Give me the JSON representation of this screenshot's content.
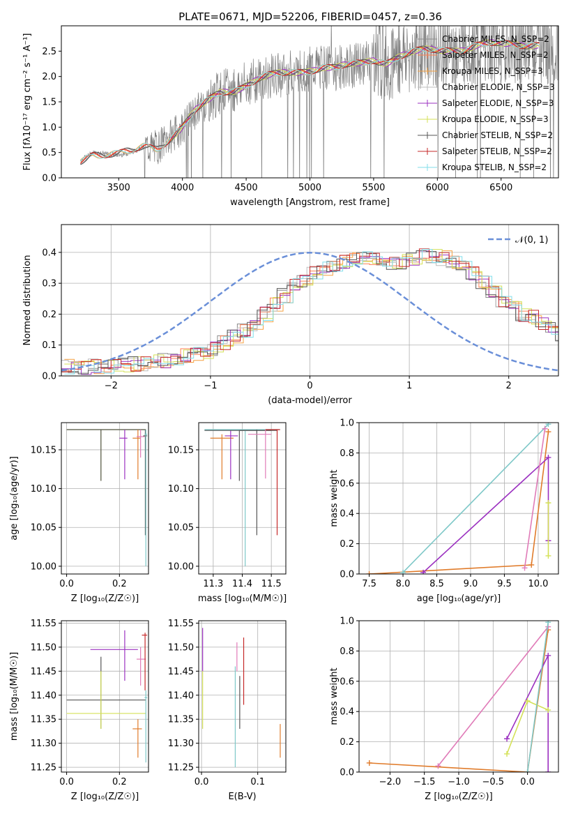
{
  "figure_title": "PLATE=0671, MJD=52206, FIBERID=0457, z=0.36",
  "colors": {
    "chabrier_miles": "#8c8c8c",
    "salpeter_miles": "#ff7f50",
    "kroupa_miles": "#f5a142",
    "chabrier_elodie": "#bdbdbd",
    "salpeter_elodie": "#9b30c0",
    "kroupa_elodie": "#d4e157",
    "chabrier_stelib": "#555555",
    "salpeter_stelib": "#c62828",
    "kroupa_stelib": "#80deea",
    "normal": "#6a8fd8",
    "orange": "#e07b2a",
    "purple": "#9b30c0",
    "lime": "#d4e157",
    "teal": "#7ec8c8",
    "pink": "#e07bb8",
    "grid": "#b0b0b0",
    "data": "#808080"
  },
  "chart_data": [
    {
      "id": "spectrum",
      "type": "line",
      "title": "PLATE=0671, MJD=52206, FIBERID=0457, z=0.36",
      "xlabel": "wavelength [Angstrom, rest frame]",
      "ylabel": "Flux [fλ10⁻¹⁷ erg cm⁻² s⁻¹ A⁻¹]",
      "xlim": [
        3050,
        6950
      ],
      "ylim": [
        0,
        3.0
      ],
      "xticks": [
        3500,
        4000,
        4500,
        5000,
        5500,
        6000,
        6500
      ],
      "yticks": [
        0.0,
        0.5,
        1.0,
        1.5,
        2.0,
        2.5
      ],
      "grid": false,
      "legend_position": "top-right",
      "legend": [
        "Chabrier MILES, N_SSP=2",
        "Salpeter MILES, N_SSP=2",
        "Kroupa MILES, N_SSP=3",
        "Chabrier ELODIE, N_SSP=3",
        "Salpeter ELODIE, N_SSP=3",
        "Kroupa ELODIE, N_SSP=3",
        "Chabrier STELIB, N_SSP=2",
        "Salpeter STELIB, N_SSP=2",
        "Kroupa STELIB, N_SSP=2"
      ],
      "continuum": {
        "x": [
          3200,
          3300,
          3400,
          3500,
          3600,
          3700,
          3800,
          3900,
          4000,
          4100,
          4200,
          4300,
          4400,
          4500,
          4600,
          4700,
          4800,
          4900,
          5000,
          5100,
          5200,
          5300,
          5400,
          5500,
          5600,
          5700,
          5800,
          5900,
          6000,
          6100,
          6200,
          6300,
          6400,
          6500,
          6600,
          6700
        ],
        "y": [
          0.35,
          0.5,
          0.47,
          0.45,
          0.5,
          0.62,
          0.6,
          0.8,
          1.0,
          1.3,
          1.5,
          1.7,
          1.75,
          1.85,
          1.95,
          2.0,
          2.05,
          2.1,
          2.15,
          2.2,
          2.15,
          2.2,
          2.25,
          2.35,
          2.3,
          2.4,
          2.45,
          2.5,
          2.52,
          2.55,
          2.55,
          2.6,
          2.62,
          2.62,
          2.65,
          2.65
        ]
      }
    },
    {
      "id": "residuals",
      "type": "histogram",
      "xlabel": "(data-model)/error",
      "ylabel": "Normed distribution",
      "xlim": [
        -2.5,
        2.5
      ],
      "ylim": [
        0,
        0.49
      ],
      "xticks": [
        -2,
        -1,
        0,
        1,
        2
      ],
      "yticks": [
        0.0,
        0.1,
        0.2,
        0.3,
        0.4
      ],
      "grid": true,
      "legend_position": "top-right",
      "legend": [
        "𝒩(0, 1)"
      ],
      "bin_width": 0.1,
      "hist_profile": [
        0.03,
        0.025,
        0.025,
        0.03,
        0.03,
        0.035,
        0.035,
        0.04,
        0.04,
        0.045,
        0.05,
        0.06,
        0.065,
        0.07,
        0.08,
        0.09,
        0.11,
        0.13,
        0.15,
        0.17,
        0.2,
        0.23,
        0.26,
        0.29,
        0.31,
        0.33,
        0.35,
        0.36,
        0.37,
        0.38,
        0.38,
        0.38,
        0.37,
        0.37,
        0.37,
        0.38,
        0.39,
        0.39,
        0.38,
        0.37,
        0.35,
        0.33,
        0.3,
        0.27,
        0.24,
        0.22,
        0.2,
        0.19,
        0.17,
        0.15,
        0.13,
        0.12,
        0.1,
        0.09,
        0.08,
        0.07,
        0.065,
        0.06,
        0.055,
        0.05
      ]
    },
    {
      "id": "age_vs_Z",
      "type": "errorbar",
      "xlabel": "Z [log₁₀(Z/Z☉)]",
      "ylabel": "age  [log₁₀(age/yr)]",
      "xlim": [
        -0.02,
        0.31
      ],
      "ylim": [
        9.99,
        10.185
      ],
      "xticks": [
        0.0,
        0.2
      ],
      "yticks": [
        10.0,
        10.05,
        10.1,
        10.15
      ],
      "grid": true,
      "errorbars": [
        {
          "x": 0.13,
          "y": 10.176,
          "x0": 0.0,
          "x1": 0.3,
          "y0": 10.11,
          "y1": 10.176,
          "c": "lime"
        },
        {
          "x": 0.13,
          "y": 10.176,
          "x0": 0.0,
          "x1": 0.3,
          "y0": 10.11,
          "y1": 10.176,
          "c": "chabrier_stelib"
        },
        {
          "x": 0.22,
          "y": 10.165,
          "x0": 0.2,
          "x1": 0.23,
          "y0": 10.112,
          "y1": 10.176,
          "c": "purple"
        },
        {
          "x": 0.27,
          "y": 10.165,
          "x0": 0.25,
          "x1": 0.28,
          "y0": 10.112,
          "y1": 10.176,
          "c": "orange"
        },
        {
          "x": 0.28,
          "y": 10.167,
          "x0": 0.265,
          "x1": 0.295,
          "y0": 10.14,
          "y1": 10.176,
          "c": "pink"
        },
        {
          "x": 0.298,
          "y": 10.168,
          "x0": 0.29,
          "x1": 0.305,
          "y0": 10.04,
          "y1": 10.176,
          "c": "chabrier_stelib"
        },
        {
          "x": 0.3,
          "y": 10.17,
          "x0": 0.295,
          "x1": 0.305,
          "y0": 10.0,
          "y1": 10.176,
          "c": "teal"
        }
      ]
    },
    {
      "id": "age_vs_mass",
      "type": "errorbar",
      "xlabel": "mass [log₁₀(M/M☉)]",
      "ylabel": "",
      "xlim": [
        11.25,
        11.55
      ],
      "ylim": [
        9.99,
        10.185
      ],
      "xticks": [
        11.3,
        11.4,
        11.5
      ],
      "yticks": [
        10.0,
        10.05,
        10.1,
        10.15
      ],
      "grid": true,
      "errorbars": [
        {
          "x": 11.33,
          "y": 10.165,
          "x0": 11.29,
          "x1": 11.37,
          "y0": 10.112,
          "y1": 10.17,
          "c": "orange"
        },
        {
          "x": 11.36,
          "y": 10.168,
          "x0": 11.34,
          "x1": 11.385,
          "y0": 10.112,
          "y1": 10.175,
          "c": "purple"
        },
        {
          "x": 11.39,
          "y": 10.175,
          "x0": 11.27,
          "x1": 11.52,
          "y0": 10.11,
          "y1": 10.176,
          "c": "chabrier_stelib"
        },
        {
          "x": 11.41,
          "y": 10.176,
          "x0": 11.27,
          "x1": 11.53,
          "y0": 10.0,
          "y1": 10.176,
          "c": "teal"
        },
        {
          "x": 11.45,
          "y": 10.175,
          "x0": 11.39,
          "x1": 11.5,
          "y0": 10.04,
          "y1": 10.176,
          "c": "chabrier_stelib"
        },
        {
          "x": 11.48,
          "y": 10.17,
          "x0": 11.42,
          "x1": 11.5,
          "y0": 10.113,
          "y1": 10.176,
          "c": "pink"
        },
        {
          "x": 11.52,
          "y": 10.176,
          "x0": 11.48,
          "x1": 11.53,
          "y0": 10.04,
          "y1": 10.176,
          "c": "salpeter_stelib"
        }
      ]
    },
    {
      "id": "weight_vs_age",
      "type": "line",
      "xlabel": "age  [log₁₀(age/yr)]",
      "ylabel": "mass weight",
      "xlim": [
        7.35,
        10.3
      ],
      "ylim": [
        0,
        1.0
      ],
      "xticks": [
        7.5,
        8.0,
        8.5,
        9.0,
        9.5,
        10.0
      ],
      "yticks": [
        0.0,
        0.2,
        0.4,
        0.6,
        0.8,
        1.0
      ],
      "grid": true,
      "series": [
        {
          "x": [
            7.5,
            9.9,
            10.15
          ],
          "y": [
            0.0,
            0.06,
            0.94
          ],
          "c": "orange"
        },
        {
          "x": [
            8.3,
            10.15,
            10.15
          ],
          "y": [
            0.01,
            0.77,
            0.22
          ],
          "c": "purple"
        },
        {
          "x": [
            8.0,
            10.15
          ],
          "y": [
            0.01,
            0.99
          ],
          "c": "teal"
        },
        {
          "x": [
            9.8,
            10.1
          ],
          "y": [
            0.04,
            0.96
          ],
          "c": "pink"
        },
        {
          "x": [
            10.15,
            10.15
          ],
          "y": [
            0.12,
            0.47
          ],
          "c": "lime"
        }
      ]
    },
    {
      "id": "mass_vs_Z",
      "type": "errorbar",
      "xlabel": "Z [log₁₀(Z/Z☉)]",
      "ylabel": "mass [log₁₀(M/M☉)]",
      "xlim": [
        -0.02,
        0.31
      ],
      "ylim": [
        11.24,
        11.555
      ],
      "xticks": [
        0.0,
        0.2
      ],
      "yticks": [
        11.25,
        11.3,
        11.35,
        11.4,
        11.45,
        11.5,
        11.55
      ],
      "grid": true,
      "errorbars": [
        {
          "x": 0.13,
          "y": 11.39,
          "x0": 0.0,
          "x1": 0.3,
          "y0": 11.33,
          "y1": 11.48,
          "c": "chabrier_stelib"
        },
        {
          "x": 0.13,
          "y": 11.362,
          "x0": 0.0,
          "x1": 0.3,
          "y0": 11.33,
          "y1": 11.45,
          "c": "lime"
        },
        {
          "x": 0.22,
          "y": 11.495,
          "x0": 0.09,
          "x1": 0.27,
          "y0": 11.43,
          "y1": 11.535,
          "c": "purple"
        },
        {
          "x": 0.27,
          "y": 11.33,
          "x0": 0.25,
          "x1": 0.285,
          "y0": 11.27,
          "y1": 11.35,
          "c": "orange"
        },
        {
          "x": 0.28,
          "y": 11.475,
          "x0": 0.265,
          "x1": 0.3,
          "y0": 11.42,
          "y1": 11.5,
          "c": "pink"
        },
        {
          "x": 0.297,
          "y": 11.525,
          "x0": 0.285,
          "x1": 0.305,
          "y0": 11.41,
          "y1": 11.53,
          "c": "salpeter_stelib"
        },
        {
          "x": 0.3,
          "y": 11.395,
          "x0": 0.295,
          "x1": 0.305,
          "y0": 11.26,
          "y1": 11.41,
          "c": "teal"
        }
      ]
    },
    {
      "id": "mass_vs_ebv",
      "type": "errorbar",
      "xlabel": "E(B-V)",
      "ylabel": "",
      "xlim": [
        -0.005,
        0.15
      ],
      "ylim": [
        11.24,
        11.555
      ],
      "xticks": [
        0.0,
        0.1
      ],
      "yticks": [
        11.25,
        11.3,
        11.35,
        11.4,
        11.45,
        11.5,
        11.55
      ],
      "grid": true,
      "errorbars": [
        {
          "x": 0.002,
          "y": 11.5,
          "x0": 0.002,
          "x1": 0.002,
          "y0": 11.45,
          "y1": 11.54,
          "c": "purple"
        },
        {
          "x": 0.002,
          "y": 11.38,
          "x0": 0.002,
          "x1": 0.002,
          "y0": 11.33,
          "y1": 11.45,
          "c": "lime"
        },
        {
          "x": 0.06,
          "y": 11.4,
          "x0": 0.06,
          "x1": 0.06,
          "y0": 11.25,
          "y1": 11.46,
          "c": "teal"
        },
        {
          "x": 0.063,
          "y": 11.47,
          "x0": 0.063,
          "x1": 0.063,
          "y0": 11.45,
          "y1": 11.51,
          "c": "pink"
        },
        {
          "x": 0.068,
          "y": 11.39,
          "x0": 0.068,
          "x1": 0.068,
          "y0": 11.33,
          "y1": 11.44,
          "c": "chabrier_stelib"
        },
        {
          "x": 0.075,
          "y": 11.45,
          "x0": 0.075,
          "x1": 0.075,
          "y0": 11.38,
          "y1": 11.52,
          "c": "salpeter_stelib"
        },
        {
          "x": 0.14,
          "y": 11.3,
          "x0": 0.14,
          "x1": 0.14,
          "y0": 11.27,
          "y1": 11.34,
          "c": "orange"
        }
      ]
    },
    {
      "id": "weight_vs_Z",
      "type": "line",
      "xlabel": "Z [log₁₀(Z/Z☉)]",
      "ylabel": "mass weight",
      "xlim": [
        -2.45,
        0.45
      ],
      "ylim": [
        0,
        1.0
      ],
      "xticks": [
        -2.0,
        -1.5,
        -1.0,
        -0.5,
        0.0
      ],
      "yticks": [
        0.0,
        0.2,
        0.4,
        0.6,
        0.8,
        1.0
      ],
      "grid": true,
      "series": [
        {
          "x": [
            -2.3,
            0.0,
            0.3
          ],
          "y": [
            0.06,
            0.0,
            0.94
          ],
          "c": "orange"
        },
        {
          "x": [
            -1.3,
            0.3
          ],
          "y": [
            0.04,
            0.96
          ],
          "c": "pink"
        },
        {
          "x": [
            -0.3,
            0.3,
            0.3
          ],
          "y": [
            0.22,
            0.77,
            0.0
          ],
          "c": "purple"
        },
        {
          "x": [
            -0.3,
            0.0,
            0.3
          ],
          "y": [
            0.12,
            0.47,
            0.41
          ],
          "c": "lime"
        },
        {
          "x": [
            0.0,
            0.3
          ],
          "y": [
            0.0,
            0.99
          ],
          "c": "teal"
        }
      ]
    }
  ]
}
